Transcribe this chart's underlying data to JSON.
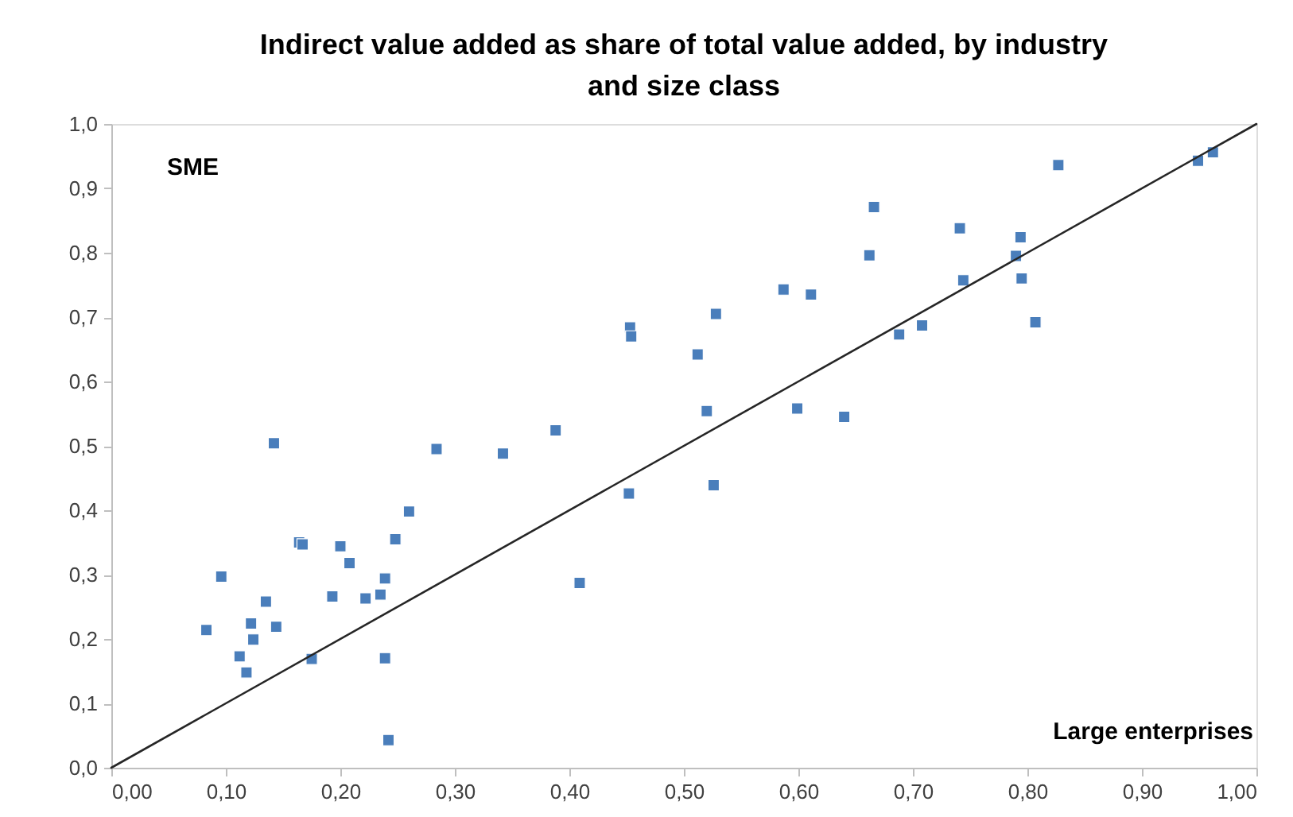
{
  "chart_data": {
    "type": "scatter",
    "title": "Indirect value added as share of total value added, by industry and size class",
    "xlabel": "Large enterprises",
    "ylabel": "SME",
    "xlim": [
      0,
      1
    ],
    "ylim": [
      0,
      1
    ],
    "xticks": [
      {
        "value": 0,
        "label": "0,00"
      },
      {
        "value": 0.1,
        "label": "0,10"
      },
      {
        "value": 0.2,
        "label": "0,20"
      },
      {
        "value": 0.3,
        "label": "0,30"
      },
      {
        "value": 0.4,
        "label": "0,40"
      },
      {
        "value": 0.5,
        "label": "0,50"
      },
      {
        "value": 0.6,
        "label": "0,60"
      },
      {
        "value": 0.7,
        "label": "0,70"
      },
      {
        "value": 0.8,
        "label": "0,80"
      },
      {
        "value": 0.9,
        "label": "0,90"
      },
      {
        "value": 1,
        "label": "1,00"
      }
    ],
    "yticks": [
      {
        "value": 0,
        "label": "0,0"
      },
      {
        "value": 0.1,
        "label": "0,1"
      },
      {
        "value": 0.2,
        "label": "0,2"
      },
      {
        "value": 0.3,
        "label": "0,3"
      },
      {
        "value": 0.4,
        "label": "0,4"
      },
      {
        "value": 0.5,
        "label": "0,5"
      },
      {
        "value": 0.6,
        "label": "0,6"
      },
      {
        "value": 0.7,
        "label": "0,7"
      },
      {
        "value": 0.8,
        "label": "0,8"
      },
      {
        "value": 0.9,
        "label": "0,9"
      },
      {
        "value": 1,
        "label": "1,0"
      }
    ],
    "grid": false,
    "marker": "square",
    "series": [
      {
        "type": "scatter",
        "color": "#4a7ebb",
        "x": [
          0.142,
          0.284,
          0.26,
          0.164,
          0.167,
          0.2,
          0.248,
          0.208,
          0.096,
          0.239,
          0.135,
          0.193,
          0.222,
          0.235,
          0.083,
          0.122,
          0.144,
          0.124,
          0.112,
          0.118,
          0.175,
          0.239,
          0.242,
          0.342,
          0.388,
          0.453,
          0.454,
          0.528,
          0.587,
          0.611,
          0.512,
          0.688,
          0.52,
          0.599,
          0.64,
          0.452,
          0.526,
          0.409,
          0.827,
          0.666,
          0.949,
          0.962,
          0.741,
          0.794,
          0.662,
          0.79,
          0.744,
          0.795,
          0.708,
          0.807
        ],
        "values": [
          0.504,
          0.495,
          0.398,
          0.35,
          0.347,
          0.344,
          0.355,
          0.318,
          0.297,
          0.294,
          0.258,
          0.266,
          0.263,
          0.269,
          0.214,
          0.224,
          0.219,
          0.199,
          0.173,
          0.148,
          0.169,
          0.17,
          0.043,
          0.488,
          0.524,
          0.684,
          0.67,
          0.705,
          0.743,
          0.735,
          0.642,
          0.673,
          0.554,
          0.558,
          0.545,
          0.426,
          0.439,
          0.287,
          0.936,
          0.871,
          0.943,
          0.956,
          0.838,
          0.824,
          0.796,
          0.795,
          0.757,
          0.76,
          0.687,
          0.692
        ]
      },
      {
        "type": "line",
        "color": "#262626",
        "x": [
          0,
          1
        ],
        "values": [
          0,
          1
        ],
        "marker": "none",
        "line_style": "solid"
      }
    ]
  }
}
